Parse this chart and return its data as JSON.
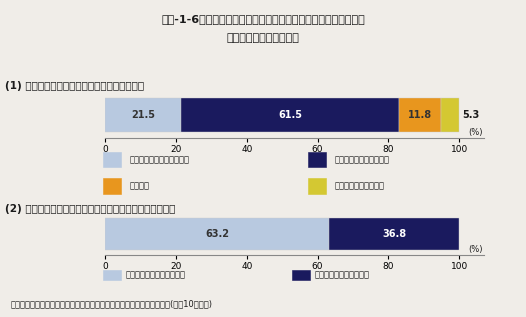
{
  "title_line1": "第１-1-6図　日本の企業は自社の主力技術・商品の海外に対する",
  "title_line2": "競争力をどう見ているか",
  "section1_label": "(1) 現在の主力技術・商品は競争力ありと認識",
  "section2_label": "(2) 今後の主力技術・商品について競争力のかげりを懸念",
  "footnote": "資料：社団法人　経済団体連合会「産業技術力強化のための実態調査」(平成10年９月)",
  "bar1_values": [
    21.5,
    61.5,
    11.8,
    5.3
  ],
  "bar1_colors": [
    "#b8c9e0",
    "#1a1a5e",
    "#e8961e",
    "#d4c832"
  ],
  "bar1_text_colors": [
    "#333333",
    "#ffffff",
    "#333333",
    "#333333"
  ],
  "bar1_labels": [
    "21.5",
    "61.5",
    "11.8",
    "5.3"
  ],
  "bar1_label_inside": [
    true,
    true,
    true,
    false
  ],
  "bar2_values": [
    63.2,
    36.8
  ],
  "bar2_colors": [
    "#b8c9e0",
    "#1a1a5e"
  ],
  "bar2_text_colors": [
    "#333333",
    "#ffffff"
  ],
  "bar2_labels": [
    "63.2",
    "36.8"
  ],
  "legend1": [
    "自社が全体的に競争力あり",
    "自社の一部が競争力あり",
    "ほぼ対等",
    "海外の方が競争力あり"
  ],
  "legend1_colors": [
    "#b8c9e0",
    "#1a1a5e",
    "#e8961e",
    "#d4c832"
  ],
  "legend2": [
    "競争力を維持・向上できる",
    "競争力低下の危機感あり"
  ],
  "legend2_colors": [
    "#b8c9e0",
    "#1a1a5e"
  ],
  "bg_color": "#f0ede8",
  "text_color": "#1a1a1a",
  "bar_bg_color": "#ffffff"
}
